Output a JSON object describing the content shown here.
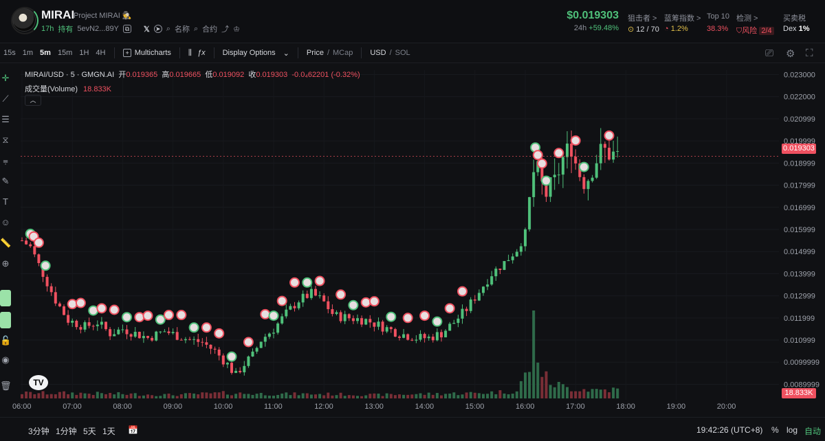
{
  "header": {
    "token": "MIRAI",
    "project": "Project MIRAI",
    "age": "17h",
    "hold": "持有",
    "address": "5evN2...89Y",
    "name_search": "名称",
    "contract_search": "合约",
    "price": "$0.019303",
    "change_label": "24h",
    "change_value": "+59.48%",
    "stats": [
      {
        "label": "狙击者 >",
        "value": "12 / 70",
        "tone": "normal"
      },
      {
        "label": "蓝筹指数 >",
        "value": "1.2%",
        "tone": "yellow"
      },
      {
        "label": "Top 10",
        "value": "38.3%",
        "tone": "red"
      },
      {
        "label": "检测 >",
        "value": "风险",
        "badge": "2/4",
        "tone": "red"
      },
      {
        "label": "买卖税",
        "value": "Dex",
        "extra": "1%",
        "tone": "normal"
      }
    ]
  },
  "toolbar": {
    "timeframes": [
      "15s",
      "1m",
      "5m",
      "15m",
      "1H",
      "4H"
    ],
    "active_timeframe": "5m",
    "multicharts": "Multicharts",
    "display_options": "Display Options",
    "price": "Price",
    "mcap": "MCap",
    "usd": "USD",
    "sol": "SOL"
  },
  "legend": {
    "symbol": "MIRAI/USD · 5 · GMGN.AI",
    "open_label": "开",
    "open": "0.019365",
    "high_label": "高",
    "high": "0.019665",
    "low_label": "低",
    "low": "0.019092",
    "close_label": "收",
    "close": "0.019303",
    "change": "-0.0₄62201 (-0.32%)",
    "volume_label": "成交量(Volume)",
    "volume": "18.833K"
  },
  "chart_data": {
    "type": "candlestick",
    "x_ticks": [
      "06:00",
      "07:00",
      "08:00",
      "09:00",
      "10:00",
      "11:00",
      "12:00",
      "13:00",
      "14:00",
      "15:00",
      "16:00",
      "17:00",
      "18:00",
      "19:00",
      "20:00"
    ],
    "y_ticks": [
      "0.023000",
      "0.022000",
      "0.020999",
      "0.019999",
      "0.018999",
      "0.017999",
      "0.016999",
      "0.015999",
      "0.014999",
      "0.013999",
      "0.012999",
      "0.011999",
      "0.010999",
      "0.0099999",
      "0.0089999"
    ],
    "ylim": [
      0.0083,
      0.0232
    ],
    "current_price": 0.019303,
    "current_volume": "18.833K",
    "colors": {
      "up": "#4fc07a",
      "down": "#ef5160"
    },
    "close_path": [
      [
        0,
        0.0155
      ],
      [
        10,
        0.0152
      ],
      [
        25,
        0.014
      ],
      [
        40,
        0.0128
      ],
      [
        55,
        0.0119
      ],
      [
        75,
        0.0116
      ],
      [
        90,
        0.0118
      ],
      [
        105,
        0.0113
      ],
      [
        120,
        0.0115
      ],
      [
        135,
        0.0113
      ],
      [
        150,
        0.0111
      ],
      [
        170,
        0.0114
      ],
      [
        185,
        0.0112
      ],
      [
        200,
        0.011
      ],
      [
        215,
        0.0109
      ],
      [
        230,
        0.0105
      ],
      [
        245,
        0.0099
      ],
      [
        255,
        0.0094
      ],
      [
        262,
        0.0098
      ],
      [
        275,
        0.0103
      ],
      [
        285,
        0.011
      ],
      [
        300,
        0.0115
      ],
      [
        315,
        0.0122
      ],
      [
        330,
        0.0128
      ],
      [
        345,
        0.0131
      ],
      [
        358,
        0.0128
      ],
      [
        372,
        0.0121
      ],
      [
        390,
        0.012
      ],
      [
        410,
        0.0119
      ],
      [
        430,
        0.0116
      ],
      [
        450,
        0.0113
      ],
      [
        470,
        0.0111
      ],
      [
        485,
        0.0111
      ],
      [
        500,
        0.0113
      ],
      [
        515,
        0.0118
      ],
      [
        530,
        0.0124
      ],
      [
        545,
        0.0132
      ],
      [
        560,
        0.014
      ],
      [
        575,
        0.0145
      ],
      [
        590,
        0.0151
      ],
      [
        600,
        0.0158
      ],
      [
        607,
        0.0178
      ],
      [
        612,
        0.0191
      ],
      [
        617,
        0.0182
      ],
      [
        625,
        0.0176
      ],
      [
        635,
        0.0181
      ],
      [
        645,
        0.0192
      ],
      [
        655,
        0.0198
      ],
      [
        662,
        0.0187
      ],
      [
        672,
        0.0181
      ],
      [
        682,
        0.019
      ],
      [
        692,
        0.0196
      ],
      [
        702,
        0.0194
      ],
      [
        710,
        0.0193
      ]
    ],
    "volume_path": [
      [
        0,
        0.06
      ],
      [
        60,
        0.06
      ],
      [
        120,
        0.05
      ],
      [
        180,
        0.04
      ],
      [
        240,
        0.06
      ],
      [
        300,
        0.05
      ],
      [
        360,
        0.05
      ],
      [
        420,
        0.04
      ],
      [
        480,
        0.05
      ],
      [
        540,
        0.06
      ],
      [
        590,
        0.08
      ],
      [
        605,
        0.35
      ],
      [
        610,
        1.0
      ],
      [
        615,
        0.55
      ],
      [
        620,
        0.28
      ],
      [
        630,
        0.18
      ],
      [
        650,
        0.12
      ],
      [
        680,
        0.1
      ],
      [
        710,
        0.1
      ]
    ]
  },
  "price_tags": {
    "last": "0.019303",
    "volume": "18.833K"
  },
  "bottom": {
    "ranges": [
      "3分钟",
      "1分钟",
      "5天",
      "1天"
    ],
    "clock": "19:42:26 (UTC+8)",
    "percent": "%",
    "log": "log",
    "auto": "自动"
  },
  "icons": {
    "tv_logo": "TV"
  }
}
